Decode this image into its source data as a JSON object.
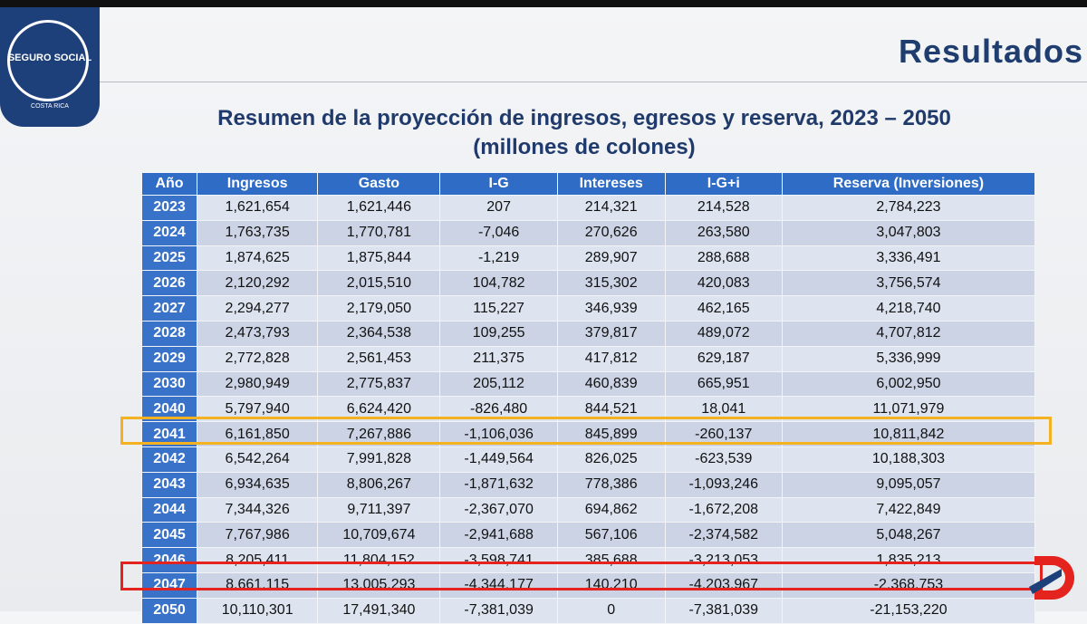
{
  "header": {
    "title": "Resultados",
    "logo_text": "SEGURO SOCIAL",
    "logo_subtext": "COSTA RICA"
  },
  "table": {
    "title": "Resumen de la proyección de ingresos, egresos y reserva, 2023 – 2050",
    "subtitle": "(millones de colones)",
    "columns": [
      "Año",
      "Ingresos",
      "Gasto",
      "I-G",
      "Intereses",
      "I-G+i",
      "Reserva (Inversiones)"
    ],
    "rows": [
      [
        "2023",
        "1,621,654",
        "1,621,446",
        "207",
        "214,321",
        "214,528",
        "2,784,223"
      ],
      [
        "2024",
        "1,763,735",
        "1,770,781",
        "-7,046",
        "270,626",
        "263,580",
        "3,047,803"
      ],
      [
        "2025",
        "1,874,625",
        "1,875,844",
        "-1,219",
        "289,907",
        "288,688",
        "3,336,491"
      ],
      [
        "2026",
        "2,120,292",
        "2,015,510",
        "104,782",
        "315,302",
        "420,083",
        "3,756,574"
      ],
      [
        "2027",
        "2,294,277",
        "2,179,050",
        "115,227",
        "346,939",
        "462,165",
        "4,218,740"
      ],
      [
        "2028",
        "2,473,793",
        "2,364,538",
        "109,255",
        "379,817",
        "489,072",
        "4,707,812"
      ],
      [
        "2029",
        "2,772,828",
        "2,561,453",
        "211,375",
        "417,812",
        "629,187",
        "5,336,999"
      ],
      [
        "2030",
        "2,980,949",
        "2,775,837",
        "205,112",
        "460,839",
        "665,951",
        "6,002,950"
      ],
      [
        "2040",
        "5,797,940",
        "6,624,420",
        "-826,480",
        "844,521",
        "18,041",
        "11,071,979"
      ],
      [
        "2041",
        "6,161,850",
        "7,267,886",
        "-1,106,036",
        "845,899",
        "-260,137",
        "10,811,842"
      ],
      [
        "2042",
        "6,542,264",
        "7,991,828",
        "-1,449,564",
        "826,025",
        "-623,539",
        "10,188,303"
      ],
      [
        "2043",
        "6,934,635",
        "8,806,267",
        "-1,871,632",
        "778,386",
        "-1,093,246",
        "9,095,057"
      ],
      [
        "2044",
        "7,344,326",
        "9,711,397",
        "-2,367,070",
        "694,862",
        "-1,672,208",
        "7,422,849"
      ],
      [
        "2045",
        "7,767,986",
        "10,709,674",
        "-2,941,688",
        "567,106",
        "-2,374,582",
        "5,048,267"
      ],
      [
        "2046",
        "8,205,411",
        "11,804,152",
        "-3,598,741",
        "385,688",
        "-3,213,053",
        "1,835,213"
      ],
      [
        "2047",
        "8,661,115",
        "13,005,293",
        "-4,344,177",
        "140,210",
        "-4,203,967",
        "-2,368,753"
      ],
      [
        "2050",
        "10,110,301",
        "17,491,340",
        "-7,381,039",
        "0",
        "-7,381,039",
        "-21,153,220"
      ]
    ]
  }
}
